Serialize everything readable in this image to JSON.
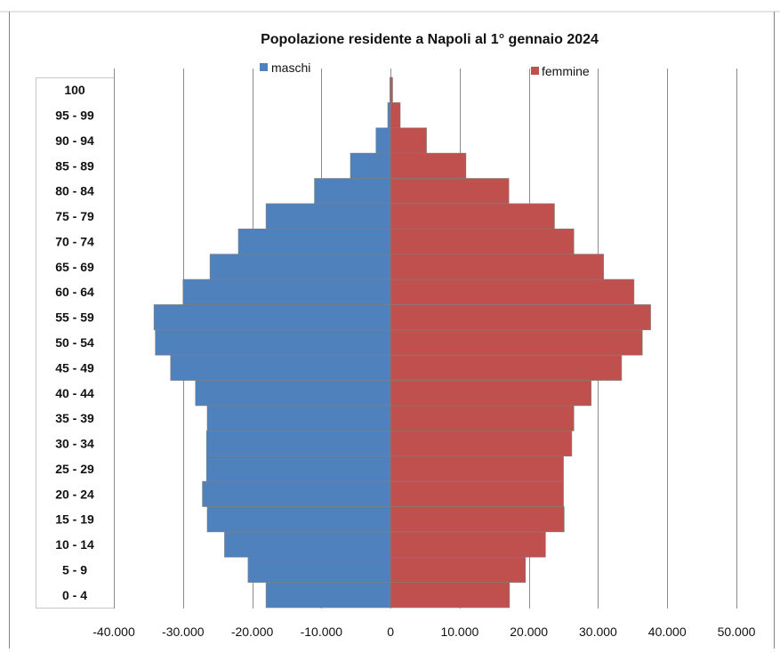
{
  "chart_data": {
    "type": "bar",
    "orientation": "horizontal-population-pyramid",
    "title": "Popolazione residente a Napoli al 1° gennaio 2024",
    "categories": [
      "0 - 4",
      "5 - 9",
      "10 - 14",
      "15 - 19",
      "20 - 24",
      "25 - 29",
      "30 - 34",
      "35 - 39",
      "40 - 44",
      "45 - 49",
      "50 - 54",
      "55 - 59",
      "60 - 64",
      "65 - 69",
      "70 - 74",
      "75 - 79",
      "80 - 84",
      "85 - 89",
      "90 - 94",
      "95 - 99",
      "100"
    ],
    "series": [
      {
        "name": "maschi",
        "color": "#4f81bd",
        "values": [
          18000,
          20600,
          24000,
          26500,
          27200,
          26600,
          26600,
          26500,
          28200,
          31800,
          34000,
          34200,
          30000,
          26100,
          22000,
          18000,
          11000,
          5800,
          2100,
          400,
          100
        ]
      },
      {
        "name": "femmine",
        "color": "#c0504d",
        "values": [
          17200,
          19500,
          22400,
          25100,
          25000,
          25000,
          26200,
          26500,
          29000,
          33400,
          36400,
          37600,
          35200,
          30800,
          26500,
          23700,
          17100,
          10900,
          5200,
          1400,
          300
        ]
      }
    ],
    "xticks": [
      "-40.000",
      "-30.000",
      "-20.000",
      "-10.000",
      "0",
      "10.000",
      "20.000",
      "30.000",
      "40.000",
      "50.000"
    ],
    "xlim": [
      -40000,
      50000
    ],
    "grid": true,
    "legend": "top"
  }
}
